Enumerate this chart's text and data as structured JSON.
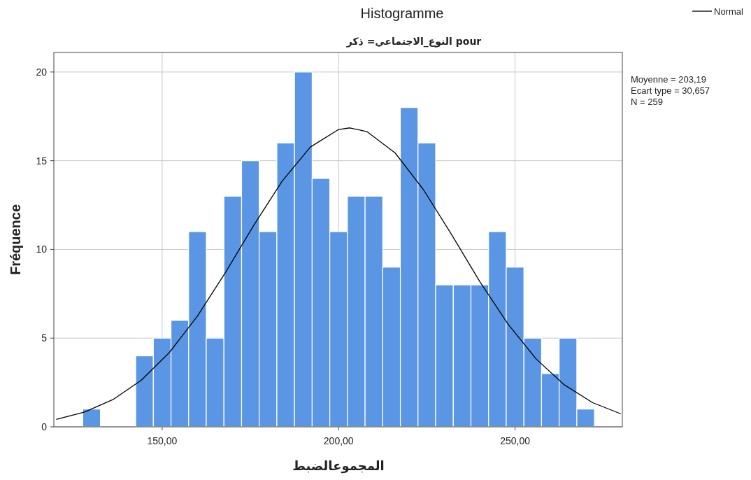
{
  "chart_data": {
    "type": "histogram",
    "title": "Histogramme",
    "subtitle": "النوع_الاجتماعي= ذكر pour",
    "xlabel": "المجموعالضبط",
    "ylabel": "Fréquence",
    "bins": [
      127.5,
      132.5,
      137.5,
      142.5,
      147.5,
      152.5,
      157.5,
      162.5,
      167.5,
      172.5,
      177.5,
      182.5,
      187.5,
      192.5,
      197.5,
      202.5,
      207.5,
      212.5,
      217.5,
      222.5,
      227.5,
      232.5,
      237.5,
      242.5,
      247.5,
      252.5,
      257.5,
      262.5,
      267.5,
      272.5
    ],
    "values": [
      1,
      0,
      0,
      4,
      5,
      6,
      11,
      5,
      13,
      15,
      11,
      16,
      20,
      14,
      11,
      13,
      13,
      9,
      18,
      16,
      8,
      8,
      8,
      11,
      9,
      5,
      3,
      5,
      1
    ],
    "color": "#5a96e3",
    "series": [
      {
        "name": "Normal",
        "type": "line",
        "color": "#000000",
        "x": [
          120,
          128,
          136,
          144,
          152,
          160,
          168,
          176,
          184,
          192,
          200,
          203.19,
          208,
          216,
          224,
          232,
          240,
          248,
          256,
          264,
          272,
          280
        ],
        "values": [
          0.42,
          0.83,
          1.53,
          2.61,
          4.18,
          6.25,
          8.72,
          11.37,
          13.85,
          15.77,
          16.76,
          16.85,
          16.64,
          15.44,
          13.38,
          10.84,
          8.19,
          5.79,
          3.82,
          2.36,
          1.36,
          0.73
        ]
      }
    ],
    "xlim": [
      119.3,
      280.4
    ],
    "ylim": [
      0,
      21.1
    ],
    "xticks": [
      {
        "value": 150,
        "label": "150,00"
      },
      {
        "value": 200,
        "label": "200,00"
      },
      {
        "value": 250,
        "label": "250,00"
      }
    ],
    "yticks": [
      0,
      5,
      10,
      15,
      20
    ],
    "grid": true,
    "legend": "top right",
    "annotations": [
      "Moyenne = 203,19",
      "Ecart type = 30,657",
      "N = 259"
    ]
  }
}
